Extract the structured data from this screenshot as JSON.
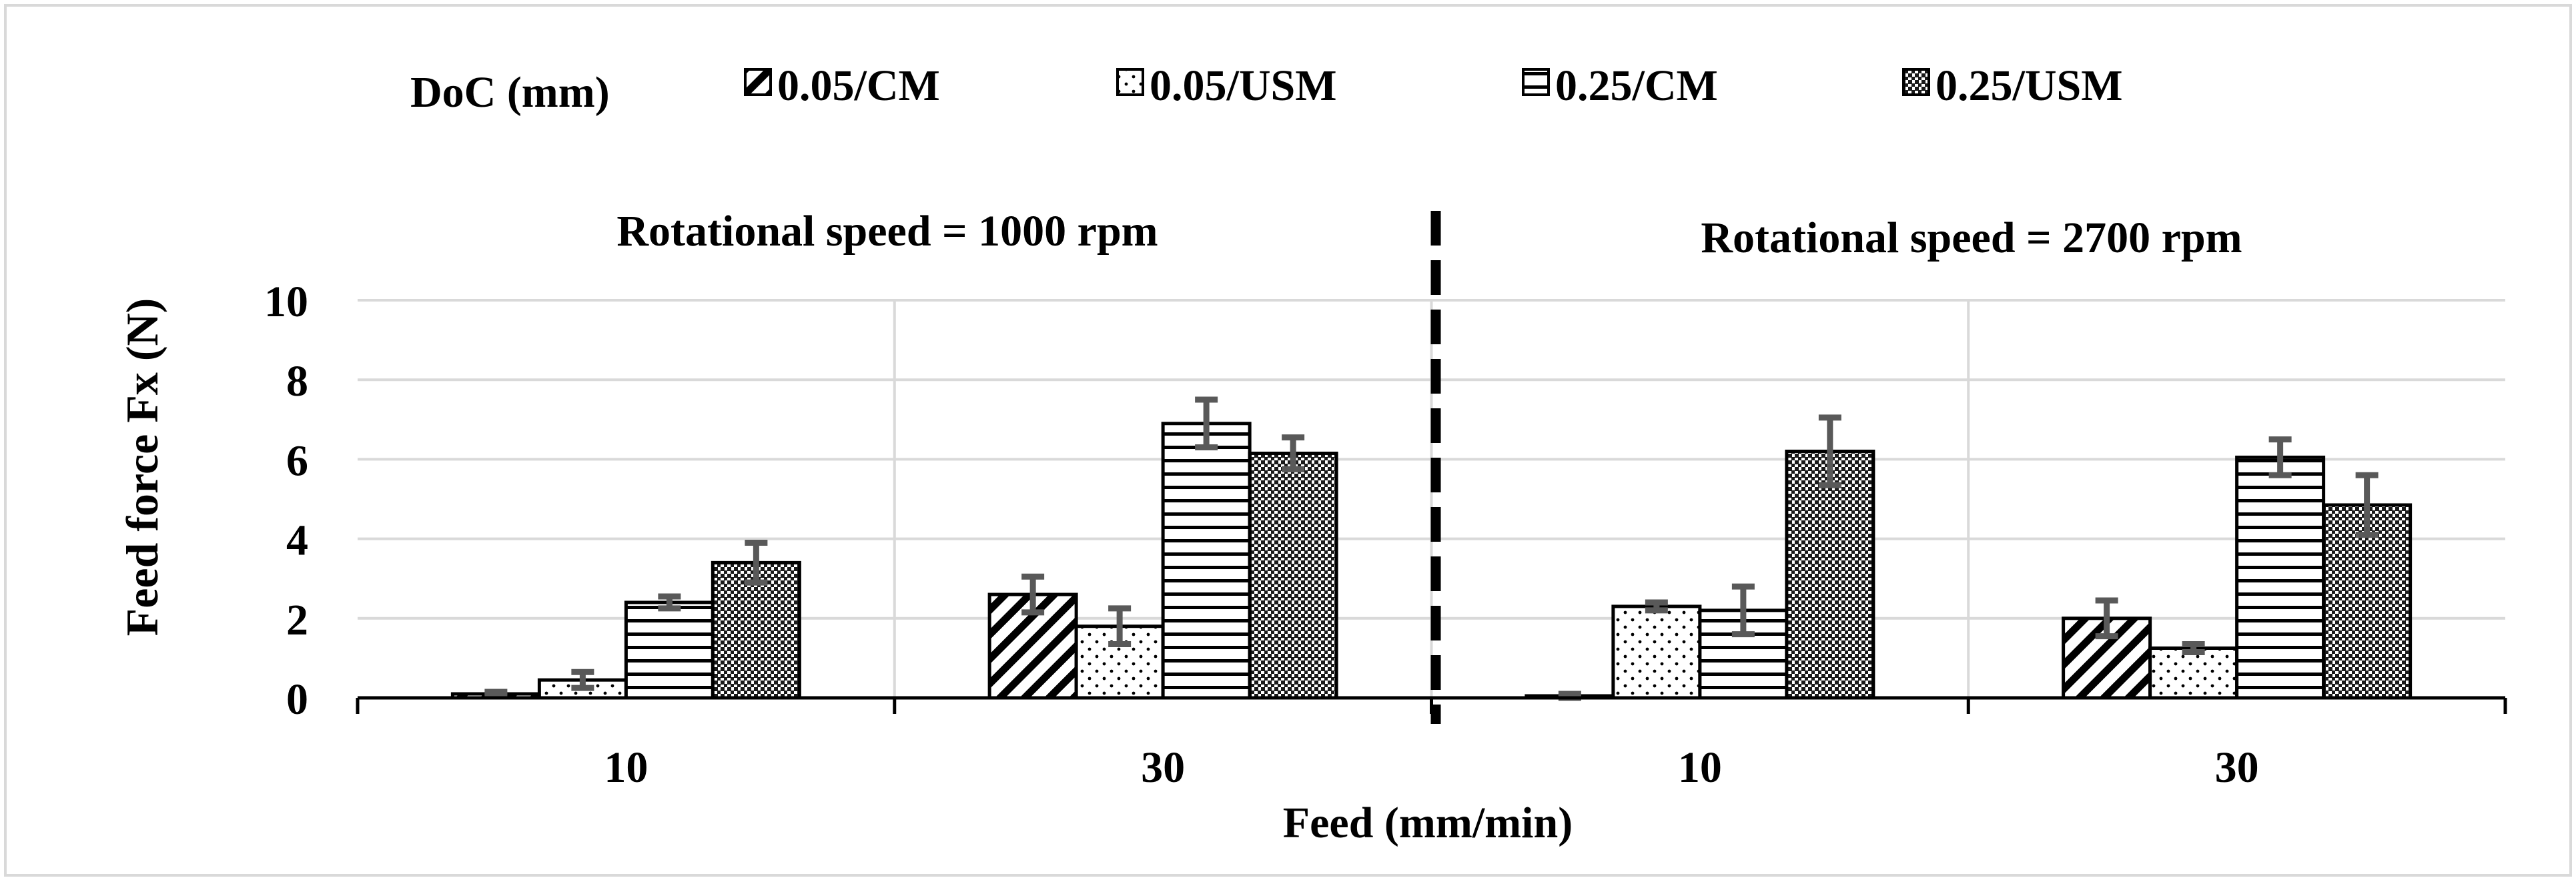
{
  "colors": {
    "frame": "#d9d9d9",
    "grid": "#d9d9d9",
    "axis": "#000000",
    "error_bar": "#595959",
    "bar_edge": "#000000"
  },
  "chart_data": {
    "type": "bar",
    "ylabel": "Feed force Fx (N)",
    "xlabel": "Feed (mm/min)",
    "ylim": [
      0,
      10
    ],
    "yticks": [
      "0",
      "2",
      "4",
      "6",
      "8",
      "10"
    ],
    "grid": true,
    "legend": {
      "title": "DoC (mm)",
      "placement": "top",
      "entries": [
        "0.05/CM",
        "0.05/USM",
        "0.25/CM",
        "0.25/USM"
      ]
    },
    "panels": [
      {
        "label": "Rotational speed = 1000 rpm"
      },
      {
        "label": "Rotational speed = 2700 rpm"
      }
    ],
    "categories": [
      "10",
      "30",
      "10",
      "30"
    ],
    "series": [
      {
        "name": "0.05/CM",
        "pattern": "diag",
        "values": [
          0.1,
          2.6,
          0.05,
          2.0
        ],
        "errors": [
          0.05,
          0.45,
          0.05,
          0.45
        ]
      },
      {
        "name": "0.05/USM",
        "pattern": "dots",
        "values": [
          0.45,
          1.8,
          2.3,
          1.25
        ],
        "errors": [
          0.2,
          0.45,
          0.1,
          0.1
        ]
      },
      {
        "name": "0.25/CM",
        "pattern": "hlines",
        "values": [
          2.4,
          6.9,
          2.2,
          6.05
        ],
        "errors": [
          0.15,
          0.6,
          0.6,
          0.45
        ]
      },
      {
        "name": "0.25/USM",
        "pattern": "check",
        "values": [
          3.4,
          6.15,
          6.2,
          4.85
        ],
        "errors": [
          0.5,
          0.4,
          0.85,
          0.75
        ]
      }
    ]
  }
}
